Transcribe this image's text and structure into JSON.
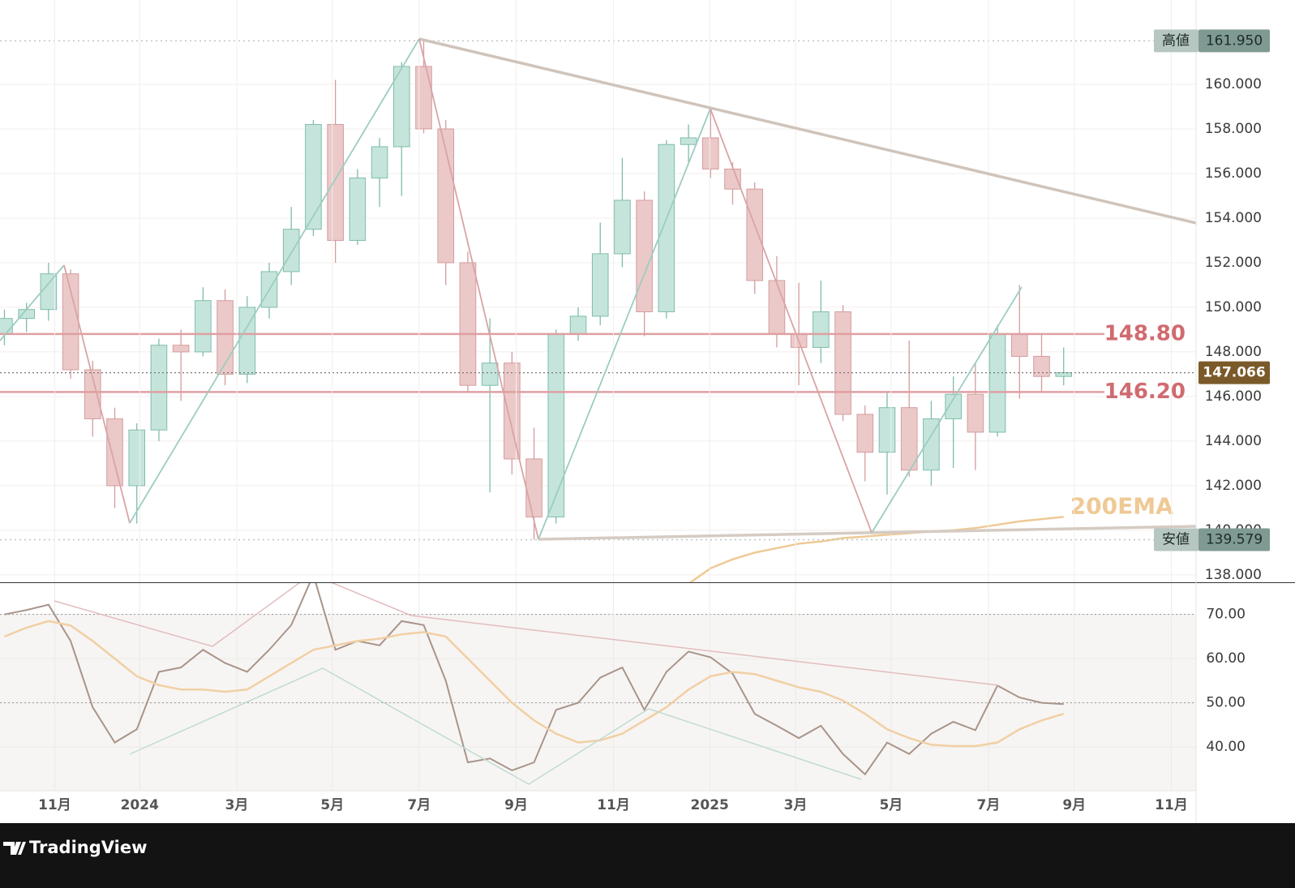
{
  "chart_data": [
    {
      "type": "candlestick",
      "open": [
        148.8,
        149.5,
        149.9,
        151.5,
        147.2,
        145.0,
        142.0,
        144.5,
        148.3,
        148.0,
        150.3,
        147.0,
        150.0,
        151.6,
        153.5,
        158.2,
        153.0,
        155.8,
        157.2,
        160.8,
        158.0,
        152.0,
        146.5,
        147.5,
        143.2,
        140.6,
        148.8,
        149.6,
        152.4,
        154.8,
        149.8,
        157.3,
        157.6,
        156.2,
        155.3,
        151.2,
        148.8,
        148.2,
        149.8,
        145.2,
        143.5,
        145.5,
        142.7,
        145.0,
        146.1,
        144.4,
        148.8,
        147.8,
        146.9
      ],
      "high": [
        149.9,
        150.2,
        152.0,
        151.7,
        147.6,
        145.5,
        144.8,
        148.6,
        149.0,
        150.9,
        150.8,
        150.5,
        152.0,
        154.5,
        158.4,
        160.2,
        156.2,
        157.6,
        161.0,
        161.95,
        158.4,
        152.5,
        149.5,
        148.0,
        144.6,
        149.0,
        150.0,
        153.8,
        156.7,
        155.2,
        157.5,
        158.2,
        158.9,
        156.5,
        155.6,
        152.3,
        151.1,
        151.2,
        150.1,
        145.6,
        146.2,
        148.5,
        145.8,
        146.9,
        147.5,
        149.2,
        151.0,
        148.8,
        148.2
      ],
      "low": [
        148.3,
        148.9,
        149.4,
        146.8,
        144.2,
        141.0,
        140.3,
        144.0,
        145.8,
        147.8,
        146.5,
        146.6,
        149.5,
        151.0,
        153.2,
        152.0,
        152.8,
        154.5,
        155.0,
        157.8,
        151.0,
        146.2,
        141.7,
        142.5,
        139.579,
        140.3,
        148.5,
        149.2,
        151.8,
        148.7,
        149.5,
        156.5,
        155.8,
        154.6,
        150.6,
        148.2,
        146.5,
        147.5,
        144.9,
        142.2,
        141.6,
        142.4,
        142.0,
        142.8,
        142.7,
        144.2,
        145.9,
        146.2,
        146.5
      ],
      "close": [
        149.5,
        149.9,
        151.5,
        147.2,
        145.0,
        142.0,
        144.5,
        148.3,
        148.0,
        150.3,
        147.0,
        150.0,
        151.6,
        153.5,
        158.2,
        153.0,
        155.8,
        157.2,
        160.8,
        158.0,
        152.0,
        146.5,
        147.5,
        143.2,
        140.6,
        148.8,
        149.6,
        152.4,
        154.8,
        149.8,
        157.3,
        157.6,
        156.2,
        155.3,
        151.2,
        148.8,
        148.2,
        149.8,
        145.2,
        143.5,
        145.5,
        142.7,
        145.0,
        146.1,
        144.4,
        148.8,
        147.8,
        146.9,
        147.066
      ],
      "up_color": "#c5e5dc",
      "down_color": "#ecc9c9",
      "xlim": [
        -0.2,
        54
      ],
      "ylim": [
        137.67,
        163.78
      ],
      "yticks": [
        {
          "value": 138,
          "label": "138.000"
        },
        {
          "value": 140,
          "label": "140.000"
        },
        {
          "value": 142,
          "label": "142.000"
        },
        {
          "value": 144,
          "label": "144.000"
        },
        {
          "value": 146,
          "label": "146.000"
        },
        {
          "value": 148,
          "label": "148.000"
        },
        {
          "value": 150,
          "label": "150.000"
        },
        {
          "value": 152,
          "label": "152.000"
        },
        {
          "value": 154,
          "label": "154.000"
        },
        {
          "value": 156,
          "label": "156.000"
        },
        {
          "value": 158,
          "label": "158.000"
        },
        {
          "value": 160,
          "label": "160.000"
        }
      ],
      "grid": true,
      "overlay": {
        "name": "200EMA",
        "color": "#efc995",
        "values": [
          null,
          null,
          null,
          null,
          null,
          null,
          null,
          null,
          null,
          null,
          null,
          null,
          null,
          null,
          null,
          null,
          null,
          null,
          null,
          null,
          null,
          null,
          null,
          null,
          null,
          null,
          null,
          null,
          null,
          null,
          null,
          137.6,
          138.3,
          138.7,
          139.0,
          139.2,
          139.4,
          139.5,
          139.65,
          139.72,
          139.8,
          139.87,
          139.95,
          140.0,
          140.1,
          140.25,
          140.4,
          140.5,
          140.6
        ]
      },
      "levels": [
        {
          "value": 148.8,
          "label": "148.80"
        },
        {
          "value": 146.2,
          "label": "146.20"
        }
      ],
      "level_color": "#df9fa2",
      "high_marker": {
        "name": "高値",
        "value": 161.95,
        "label": "161.950"
      },
      "low_marker": {
        "name": "安値",
        "value": 139.579,
        "label": "139.579"
      },
      "last": {
        "value": 147.066,
        "label": "147.066"
      }
    },
    {
      "type": "line",
      "series": [
        {
          "color": "#a8948a",
          "values": [
            70,
            71,
            72.2,
            64,
            49,
            41,
            44,
            57,
            58,
            62,
            59,
            57,
            62,
            67.6,
            79,
            62,
            64,
            63,
            68.5,
            67.6,
            55,
            36.5,
            37.4,
            34.7,
            36.5,
            48.4,
            50,
            55.7,
            58,
            48.4,
            57,
            61.6,
            60.3,
            56.6,
            47.5,
            44.8,
            42,
            44.8,
            38.4,
            33.8,
            41,
            38.4,
            43,
            45.7,
            43.8,
            53.9,
            51.2,
            50,
            49.7
          ]
        },
        {
          "color": "#f1cfa4",
          "values": [
            65,
            67,
            68.5,
            67.5,
            64,
            60,
            56,
            54,
            53,
            53,
            52.5,
            53,
            56,
            59,
            62,
            63,
            64,
            64.5,
            65.5,
            66,
            65,
            60,
            55,
            50,
            46,
            43,
            41,
            41.5,
            43,
            46,
            49,
            53,
            56,
            57,
            56.5,
            55,
            53.5,
            52.5,
            50.5,
            47.5,
            44,
            42,
            40.5,
            40.2,
            40.2,
            41,
            44,
            46,
            47.5
          ]
        }
      ],
      "band_top": 70,
      "dotted_levels": [
        70,
        50
      ],
      "ylim": [
        30.1,
        77.1
      ],
      "yticks": [
        {
          "value": 40,
          "label": "40.00"
        },
        {
          "value": 50,
          "label": "50.00"
        },
        {
          "value": 60,
          "label": "60.00"
        },
        {
          "value": 70,
          "label": "70.00"
        }
      ],
      "xlim": [
        -0.2,
        54
      ],
      "xticks": [
        {
          "value": 2.28,
          "label": "11月"
        },
        {
          "value": 6.13,
          "label": "2024"
        },
        {
          "value": 10.53,
          "label": "3月"
        },
        {
          "value": 14.86,
          "label": "5月"
        },
        {
          "value": 18.79,
          "label": "7月"
        },
        {
          "value": 23.19,
          "label": "9月"
        },
        {
          "value": 27.6,
          "label": "11月"
        },
        {
          "value": 31.96,
          "label": "2025"
        },
        {
          "value": 35.85,
          "label": "3月"
        },
        {
          "value": 40.18,
          "label": "5月"
        },
        {
          "value": 44.59,
          "label": "7月"
        },
        {
          "value": 48.48,
          "label": "9月"
        },
        {
          "value": 52.88,
          "label": "11月"
        }
      ]
    }
  ],
  "footer": "TradingView"
}
